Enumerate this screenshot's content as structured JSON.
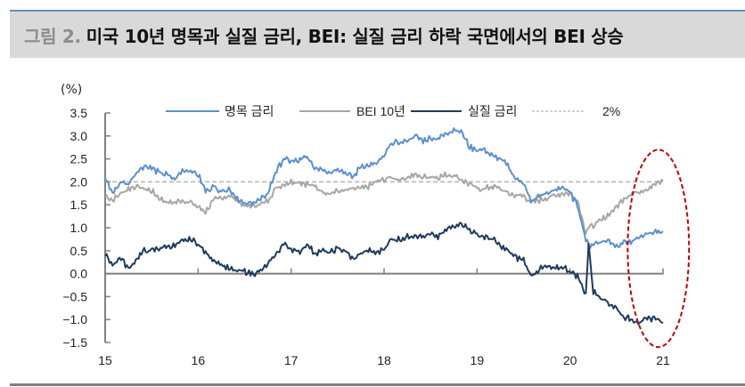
{
  "header": {
    "figure_label": "그림 2.",
    "title": "미국 10년 명목과 실질 금리, BEI: 실질 금리 하락 국면에서의 BEI 상승"
  },
  "chart": {
    "unit_label": "(%)"
  },
  "chart_data": {
    "type": "line",
    "title": "미국 10년 명목과 실질 금리, BEI: 실질 금리 하락 국면에서의 BEI 상승",
    "xlabel": "",
    "ylabel": "(%)",
    "ylim": [
      -1.5,
      3.5
    ],
    "yticks": [
      3.5,
      3.0,
      2.5,
      2.0,
      1.5,
      1.0,
      0.5,
      0.0,
      -0.5,
      -1.0,
      -1.5
    ],
    "ytick_labels": [
      "3.5",
      "3.0",
      "2.5",
      "2.0",
      "1.5",
      "1.0",
      "0.5",
      "0.0",
      "−0.5",
      "−1.0",
      "−1.5"
    ],
    "xlim": [
      2015.0,
      2021.0
    ],
    "xticks": [
      2015,
      2016,
      2017,
      2018,
      2019,
      2020,
      2021
    ],
    "xtick_labels": [
      "15",
      "16",
      "17",
      "18",
      "19",
      "20",
      "21"
    ],
    "grid": false,
    "legend_position": "top",
    "reference_line": {
      "name": "2%",
      "value": 2.0,
      "style": "dashed",
      "color": "#b3b3b3"
    },
    "annotation": {
      "type": "ellipse",
      "style": "dashed",
      "color": "#c00000",
      "note": "highlights late 2020 - early 2021 period",
      "cx": 2020.95,
      "cy": 0.55,
      "rx_years": 0.33,
      "ry": 2.15
    },
    "x": [
      2015.0,
      2015.08,
      2015.17,
      2015.25,
      2015.33,
      2015.42,
      2015.5,
      2015.58,
      2015.67,
      2015.75,
      2015.83,
      2015.92,
      2016.0,
      2016.08,
      2016.17,
      2016.25,
      2016.33,
      2016.42,
      2016.5,
      2016.58,
      2016.67,
      2016.75,
      2016.83,
      2016.92,
      2017.0,
      2017.08,
      2017.17,
      2017.25,
      2017.33,
      2017.42,
      2017.5,
      2017.58,
      2017.67,
      2017.75,
      2017.83,
      2017.92,
      2018.0,
      2018.08,
      2018.17,
      2018.25,
      2018.33,
      2018.42,
      2018.5,
      2018.58,
      2018.67,
      2018.75,
      2018.83,
      2018.92,
      2019.0,
      2019.08,
      2019.17,
      2019.25,
      2019.33,
      2019.42,
      2019.5,
      2019.58,
      2019.67,
      2019.75,
      2019.83,
      2019.92,
      2020.0,
      2020.08,
      2020.17,
      2020.2,
      2020.25,
      2020.33,
      2020.42,
      2020.5,
      2020.58,
      2020.67,
      2020.75,
      2020.83,
      2020.92,
      2021.0
    ],
    "series": [
      {
        "name": "명목 금리",
        "color": "#5b8fd0",
        "style": "solid",
        "values": [
          2.1,
          1.75,
          2.0,
          1.95,
          2.2,
          2.35,
          2.3,
          2.2,
          2.15,
          2.05,
          2.25,
          2.25,
          2.15,
          1.8,
          1.9,
          1.8,
          1.85,
          1.65,
          1.5,
          1.55,
          1.6,
          1.75,
          2.2,
          2.5,
          2.45,
          2.45,
          2.55,
          2.3,
          2.3,
          2.2,
          2.3,
          2.2,
          2.1,
          2.35,
          2.35,
          2.4,
          2.55,
          2.85,
          2.85,
          2.9,
          3.0,
          2.9,
          2.95,
          2.95,
          3.05,
          3.15,
          3.1,
          2.75,
          2.7,
          2.7,
          2.55,
          2.5,
          2.35,
          2.05,
          2.0,
          1.55,
          1.7,
          1.75,
          1.8,
          1.9,
          1.75,
          1.5,
          0.75,
          0.6,
          0.65,
          0.7,
          0.72,
          0.6,
          0.7,
          0.68,
          0.8,
          0.85,
          0.93,
          0.92
        ]
      },
      {
        "name": "BEI 10년",
        "color": "#a6a6a6",
        "style": "solid",
        "values": [
          1.7,
          1.6,
          1.75,
          1.85,
          1.9,
          1.85,
          1.8,
          1.65,
          1.55,
          1.55,
          1.6,
          1.55,
          1.45,
          1.35,
          1.6,
          1.65,
          1.7,
          1.6,
          1.45,
          1.5,
          1.5,
          1.6,
          1.85,
          1.95,
          2.0,
          2.0,
          1.95,
          1.9,
          1.8,
          1.75,
          1.8,
          1.8,
          1.85,
          1.85,
          1.9,
          2.0,
          2.05,
          2.1,
          2.05,
          2.1,
          2.15,
          2.1,
          2.12,
          2.1,
          2.15,
          2.15,
          2.05,
          1.95,
          1.85,
          1.85,
          1.9,
          1.85,
          1.75,
          1.7,
          1.7,
          1.55,
          1.6,
          1.65,
          1.7,
          1.75,
          1.75,
          1.6,
          0.9,
          1.0,
          1.05,
          1.15,
          1.3,
          1.45,
          1.65,
          1.75,
          1.8,
          1.85,
          1.95,
          2.02
        ]
      },
      {
        "name": "실질 금리",
        "color": "#1f3a5f",
        "style": "solid",
        "values": [
          0.4,
          0.2,
          0.35,
          0.1,
          0.3,
          0.5,
          0.5,
          0.55,
          0.6,
          0.6,
          0.7,
          0.75,
          0.65,
          0.45,
          0.3,
          0.2,
          0.1,
          0.05,
          0.05,
          0.0,
          0.05,
          0.2,
          0.4,
          0.65,
          0.55,
          0.45,
          0.65,
          0.45,
          0.5,
          0.45,
          0.55,
          0.5,
          0.3,
          0.45,
          0.5,
          0.45,
          0.55,
          0.75,
          0.75,
          0.8,
          0.85,
          0.8,
          0.85,
          0.8,
          0.95,
          1.05,
          1.1,
          0.95,
          0.85,
          0.8,
          0.75,
          0.6,
          0.5,
          0.35,
          0.3,
          -0.05,
          0.1,
          0.15,
          0.1,
          0.15,
          0.05,
          -0.05,
          -0.45,
          0.65,
          -0.4,
          -0.5,
          -0.65,
          -0.75,
          -0.95,
          -1.0,
          -1.05,
          -1.0,
          -0.95,
          -1.08
        ]
      },
      {
        "name": "2%",
        "color": "#b3b3b3",
        "style": "dashed",
        "values": [
          2.0,
          2.0
        ]
      }
    ]
  },
  "legend": {
    "items": [
      {
        "label": "명목 금리",
        "color": "#5b8fd0",
        "style": "solid"
      },
      {
        "label": "BEI 10년",
        "color": "#a6a6a6",
        "style": "solid"
      },
      {
        "label": "실질 금리",
        "color": "#1f3a5f",
        "style": "solid"
      },
      {
        "label": "2%",
        "color": "#b3b3b3",
        "style": "dashed"
      }
    ]
  },
  "colors": {
    "header_bg": "#d9d9d9",
    "header_border": "#6b8db5",
    "axis": "#808080",
    "highlight_ellipse": "#c00000"
  }
}
